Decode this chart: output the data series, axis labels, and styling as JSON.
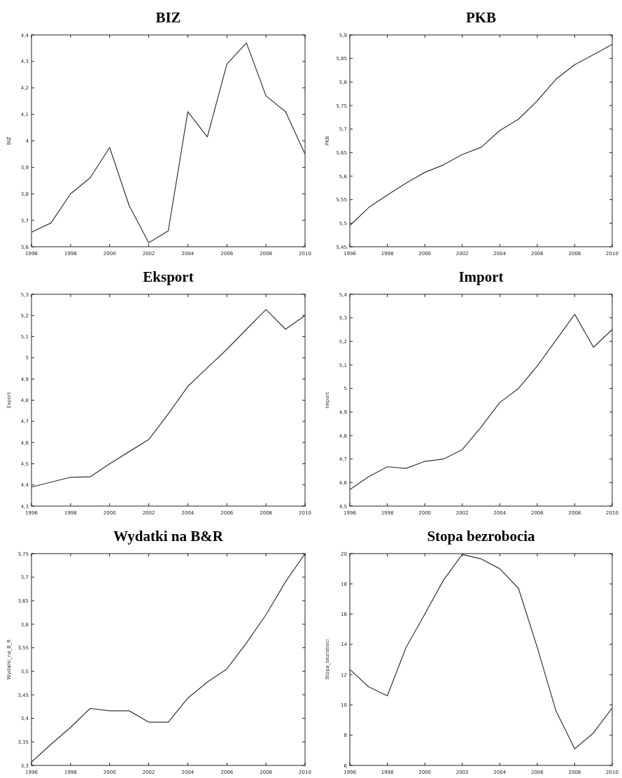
{
  "chart_data": [
    {
      "type": "line",
      "title": "BIZ",
      "ylabel": "BIZ",
      "x": [
        1996,
        1997,
        1998,
        1999,
        2000,
        2001,
        2002,
        2003,
        2004,
        2005,
        2006,
        2007,
        2008,
        2009,
        2010
      ],
      "series": [
        {
          "color": "#333333",
          "values": [
            3.655,
            3.69,
            3.8,
            3.86,
            3.975,
            3.755,
            3.615,
            3.66,
            4.11,
            4.015,
            4.29,
            4.37,
            4.17,
            4.11,
            3.95
          ]
        }
      ],
      "xlim": [
        1996,
        2010
      ],
      "xticks": [
        1996,
        1998,
        2000,
        2002,
        2004,
        2006,
        2008,
        2010
      ],
      "ylim": [
        3.6,
        4.4
      ],
      "yticks": [
        {
          "value": 3.6,
          "label": "3,6"
        },
        {
          "value": 3.7,
          "label": "3,7"
        },
        {
          "value": 3.8,
          "label": "3,8"
        },
        {
          "value": 3.9,
          "label": "3,9"
        },
        4,
        {
          "value": 4.1,
          "label": "4,1"
        },
        {
          "value": 4.2,
          "label": "4,2"
        },
        {
          "value": 4.3,
          "label": "4,3"
        },
        {
          "value": 4.4,
          "label": "4,4"
        }
      ],
      "grid": false,
      "marker": "none",
      "line_style": "solid"
    },
    {
      "type": "line",
      "title": "PKB",
      "ylabel": "PKB",
      "x": [
        1996,
        1997,
        1998,
        1999,
        2000,
        2001,
        2002,
        2003,
        2004,
        2005,
        2006,
        2007,
        2008,
        2009,
        2010
      ],
      "series": [
        {
          "color": "#333333",
          "values": [
            5.495,
            5.533,
            5.56,
            5.585,
            5.608,
            5.624,
            5.646,
            5.661,
            5.697,
            5.721,
            5.76,
            5.806,
            5.837,
            5.858,
            5.88
          ]
        }
      ],
      "xlim": [
        1996,
        2010
      ],
      "xticks": [
        1996,
        1998,
        2000,
        2002,
        2004,
        2006,
        2008,
        2010
      ],
      "ylim": [
        5.45,
        5.9
      ],
      "yticks": [
        {
          "value": 5.45,
          "label": "5,45"
        },
        {
          "value": 5.5,
          "label": "5,5"
        },
        {
          "value": 5.55,
          "label": "5,55"
        },
        {
          "value": 5.6,
          "label": "5,6"
        },
        {
          "value": 5.65,
          "label": "5,65"
        },
        {
          "value": 5.7,
          "label": "5,7"
        },
        {
          "value": 5.75,
          "label": "5,75"
        },
        {
          "value": 5.8,
          "label": "5,8"
        },
        {
          "value": 5.85,
          "label": "5,85"
        },
        {
          "value": 5.9,
          "label": "5,9"
        }
      ],
      "grid": false,
      "marker": "none",
      "line_style": "solid"
    },
    {
      "type": "line",
      "title": "Eksport",
      "ylabel": "Export",
      "x": [
        1996,
        1997,
        1998,
        1999,
        2000,
        2001,
        2002,
        2003,
        2004,
        2005,
        2006,
        2007,
        2008,
        2009,
        2010
      ],
      "series": [
        {
          "color": "#333333",
          "values": [
            4.39,
            4.413,
            4.436,
            4.438,
            4.5,
            4.557,
            4.614,
            4.735,
            4.865,
            4.953,
            5.04,
            5.135,
            5.228,
            5.135,
            5.2
          ]
        }
      ],
      "xlim": [
        1996,
        2010
      ],
      "xticks": [
        1996,
        1998,
        2000,
        2002,
        2004,
        2006,
        2008,
        2010
      ],
      "ylim": [
        4.3,
        5.3
      ],
      "yticks": [
        {
          "value": 4.3,
          "label": "4,3"
        },
        {
          "value": 4.4,
          "label": "4,4"
        },
        {
          "value": 4.5,
          "label": "4,5"
        },
        {
          "value": 4.6,
          "label": "4,6"
        },
        {
          "value": 4.7,
          "label": "4,7"
        },
        {
          "value": 4.8,
          "label": "4,8"
        },
        {
          "value": 4.9,
          "label": "4,9"
        },
        5,
        {
          "value": 5.1,
          "label": "5,1"
        },
        {
          "value": 5.2,
          "label": "5,2"
        },
        {
          "value": 5.3,
          "label": "5,3"
        }
      ],
      "grid": false,
      "marker": "none",
      "line_style": "solid"
    },
    {
      "type": "line",
      "title": "Import",
      "ylabel": "Import",
      "x": [
        1996,
        1997,
        1998,
        1999,
        2000,
        2001,
        2002,
        2003,
        2004,
        2005,
        2006,
        2007,
        2008,
        2009,
        2010
      ],
      "series": [
        {
          "color": "#333333",
          "values": [
            4.57,
            4.625,
            4.667,
            4.66,
            4.69,
            4.7,
            4.74,
            4.835,
            4.94,
            5.0,
            5.095,
            5.205,
            5.315,
            5.175,
            5.25
          ]
        }
      ],
      "xlim": [
        1996,
        2010
      ],
      "xticks": [
        1996,
        1998,
        2000,
        2002,
        2004,
        2006,
        2008,
        2010
      ],
      "ylim": [
        4.5,
        5.4
      ],
      "yticks": [
        {
          "value": 4.5,
          "label": "4,5"
        },
        {
          "value": 4.6,
          "label": "4,6"
        },
        {
          "value": 4.7,
          "label": "4,7"
        },
        {
          "value": 4.8,
          "label": "4,8"
        },
        {
          "value": 4.9,
          "label": "4,9"
        },
        5,
        {
          "value": 5.1,
          "label": "5,1"
        },
        {
          "value": 5.2,
          "label": "5,2"
        },
        {
          "value": 5.3,
          "label": "5,3"
        },
        {
          "value": 5.4,
          "label": "5,4"
        }
      ],
      "grid": false,
      "marker": "none",
      "line_style": "solid"
    },
    {
      "type": "line",
      "title": "Wydatki na B&R",
      "ylabel": "Wydatki_na_B_R",
      "x": [
        1996,
        1997,
        1998,
        1999,
        2000,
        2001,
        2002,
        2003,
        2004,
        2005,
        2006,
        2007,
        2008,
        2009,
        2010
      ],
      "series": [
        {
          "color": "#333333",
          "values": [
            3.307,
            3.345,
            3.381,
            3.421,
            3.416,
            3.416,
            3.392,
            3.392,
            3.443,
            3.477,
            3.505,
            3.56,
            3.62,
            3.69,
            3.75
          ]
        }
      ],
      "xlim": [
        1996,
        2010
      ],
      "xticks": [
        1996,
        1998,
        2000,
        2002,
        2004,
        2006,
        2008,
        2010
      ],
      "ylim": [
        3.3,
        3.75
      ],
      "yticks": [
        {
          "value": 3.3,
          "label": "3,3"
        },
        {
          "value": 3.35,
          "label": "3,35"
        },
        {
          "value": 3.4,
          "label": "3,4"
        },
        {
          "value": 3.45,
          "label": "3,45"
        },
        {
          "value": 3.5,
          "label": "3,5"
        },
        {
          "value": 3.55,
          "label": "3,55"
        },
        {
          "value": 3.6,
          "label": "3,6"
        },
        {
          "value": 3.65,
          "label": "3,65"
        },
        {
          "value": 3.7,
          "label": "3,7"
        },
        {
          "value": 3.75,
          "label": "3,75"
        }
      ],
      "grid": false,
      "marker": "none",
      "line_style": "solid"
    },
    {
      "type": "line",
      "title": "Stopa bezrobocia",
      "ylabel": "Stopa_bezroboci",
      "x": [
        1996,
        1997,
        1998,
        1999,
        2000,
        2001,
        2002,
        2003,
        2004,
        2005,
        2006,
        2007,
        2008,
        2009,
        2010
      ],
      "series": [
        {
          "color": "#333333",
          "values": [
            12.35,
            11.2,
            10.6,
            13.8,
            16.0,
            18.25,
            19.95,
            19.65,
            19.0,
            17.7,
            13.8,
            9.6,
            7.1,
            8.15,
            9.8
          ]
        }
      ],
      "xlim": [
        1996,
        2010
      ],
      "xticks": [
        1996,
        1998,
        2000,
        2002,
        2004,
        2006,
        2008,
        2010
      ],
      "ylim": [
        6,
        20
      ],
      "yticks": [
        6,
        8,
        10,
        12,
        14,
        16,
        18,
        20
      ],
      "grid": false,
      "marker": "none",
      "line_style": "solid"
    }
  ]
}
